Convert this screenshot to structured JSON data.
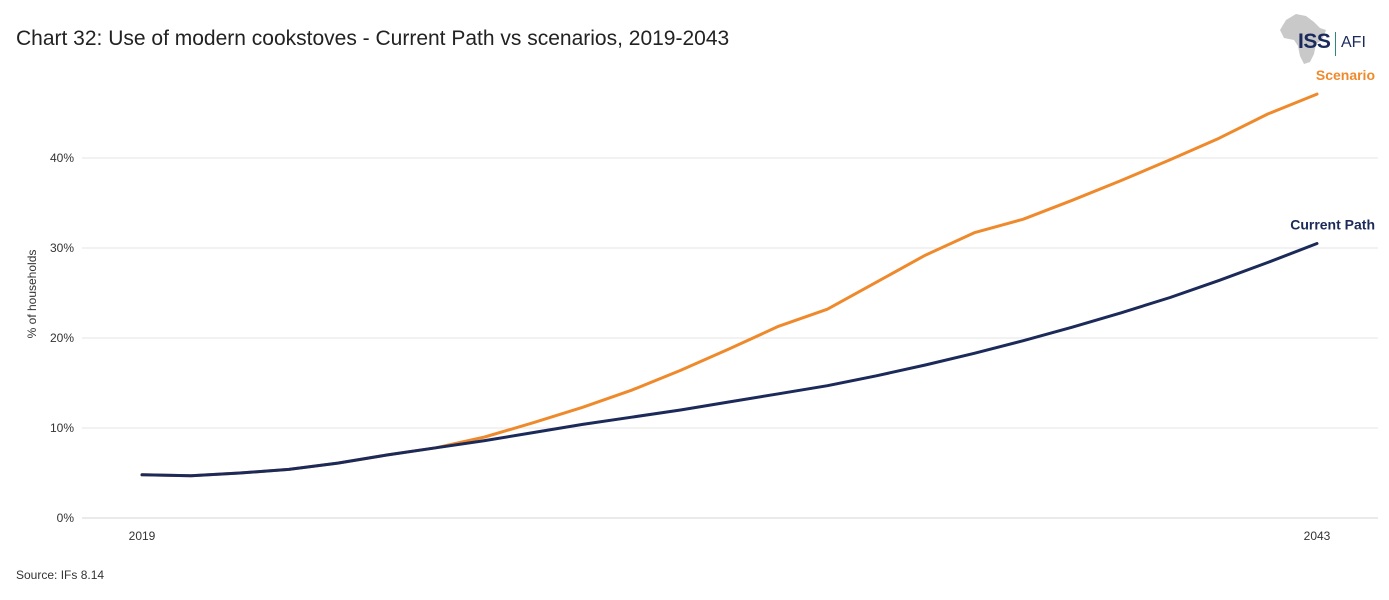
{
  "title": "Chart 32: Use of modern cookstoves - Current Path vs scenarios, 2019-2043",
  "source": "Source: IFs 8.14",
  "logo": {
    "primary": "ISS",
    "secondary": "AFI"
  },
  "chart_data": {
    "type": "line",
    "xlabel": "",
    "ylabel": "% of households",
    "ylim": [
      0,
      45
    ],
    "xlim": [
      2019,
      2043
    ],
    "yticks": [
      0,
      10,
      20,
      30,
      40
    ],
    "ytick_labels": [
      "0%",
      "10%",
      "20%",
      "30%",
      "40%"
    ],
    "xtick_labels": [
      "2019",
      "2043"
    ],
    "xticks": [
      2019,
      2043
    ],
    "grid": true,
    "x": [
      2019,
      2020,
      2021,
      2022,
      2023,
      2024,
      2025,
      2026,
      2027,
      2028,
      2029,
      2030,
      2031,
      2032,
      2033,
      2034,
      2035,
      2036,
      2037,
      2038,
      2039,
      2040,
      2041,
      2042,
      2043
    ],
    "series": [
      {
        "name": "Scenario",
        "color": "#ef8a2c",
        "values": [
          4.8,
          4.7,
          5.0,
          5.4,
          6.1,
          7.0,
          7.8,
          9.0,
          10.6,
          12.3,
          14.2,
          16.4,
          18.8,
          21.3,
          23.2,
          26.2,
          29.2,
          31.7,
          33.2,
          35.3,
          37.5,
          39.8,
          42.2,
          44.9,
          47.1
        ]
      },
      {
        "name": "Current Path",
        "color": "#1c2a5a",
        "values": [
          4.8,
          4.7,
          5.0,
          5.4,
          6.1,
          7.0,
          7.8,
          8.6,
          9.5,
          10.4,
          11.2,
          12.0,
          12.9,
          13.8,
          14.7,
          15.8,
          17.0,
          18.3,
          19.7,
          21.2,
          22.8,
          24.5,
          26.4,
          28.4,
          30.5
        ]
      }
    ]
  }
}
